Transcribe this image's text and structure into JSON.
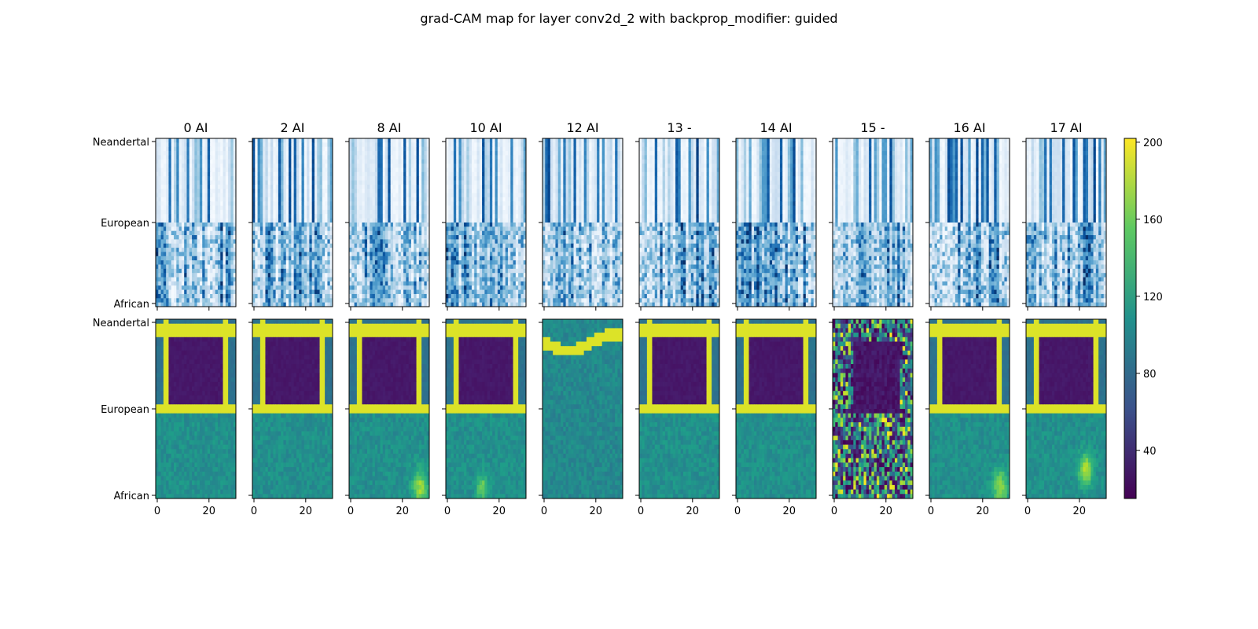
{
  "chart_data": {
    "type": "heatmap",
    "title": "grad-CAM map for layer conv2d_2 with backprop_modifier: guided",
    "panel_titles": [
      "0 AI",
      "2 AI",
      "8 AI",
      "10 AI",
      "12 AI",
      "13 -",
      "14 AI",
      "15 -",
      "16 AI",
      "17 AI"
    ],
    "y_tick_labels": [
      "Neandertal",
      "European",
      "African"
    ],
    "x_tick_labels": [
      "0",
      "20"
    ],
    "x_ticks": [
      0,
      20
    ],
    "x_range": [
      0,
      31
    ],
    "rows": [
      {
        "name": "",
        "colormap": "Blues"
      },
      {
        "name": "",
        "colormap": "viridis"
      }
    ],
    "colorbar": {
      "colormap": "viridis",
      "range": [
        15,
        202
      ],
      "ticks": [
        40,
        80,
        120,
        160,
        200
      ],
      "tick_labels": [
        "40",
        "80",
        "120",
        "160",
        "200"
      ]
    }
  }
}
